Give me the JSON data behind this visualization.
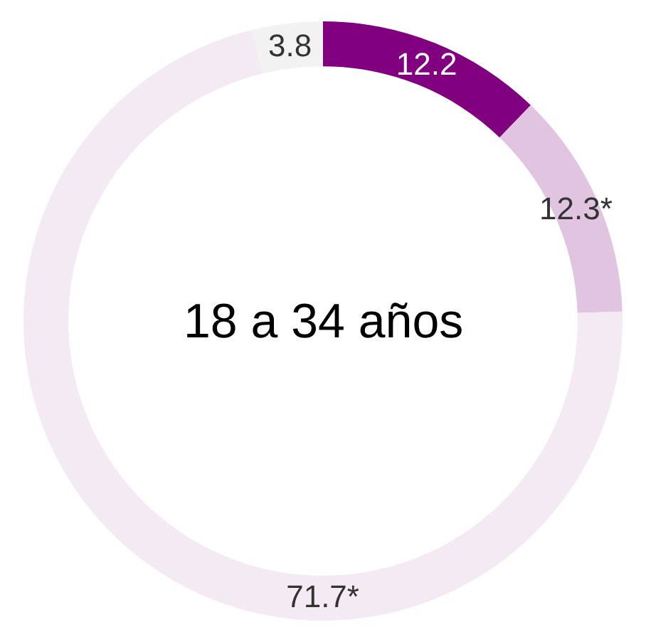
{
  "chart_data": {
    "type": "donut",
    "title": "18 a 34 años",
    "categories": [
      null,
      null,
      null,
      null
    ],
    "values": [
      12.2,
      12.3,
      71.7,
      3.8
    ],
    "value_labels": [
      "12.2",
      "12.3*",
      "71.7*",
      "3.8"
    ],
    "colors": [
      "#800080",
      "#e0c4e0",
      "#f4eaf4",
      "#f2f2f2"
    ],
    "legend": false
  }
}
